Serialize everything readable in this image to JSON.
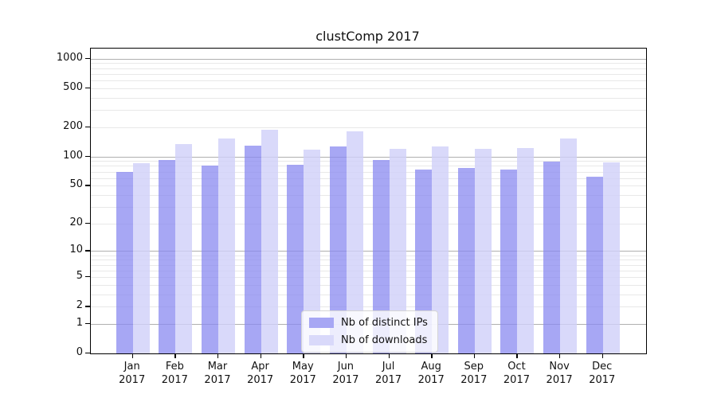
{
  "chart": {
    "title": "clustComp 2017"
  },
  "chart_data": {
    "type": "bar",
    "title": "clustComp 2017",
    "categories": [
      "Jan 2017",
      "Feb 2017",
      "Mar 2017",
      "Apr 2017",
      "May 2017",
      "Jun 2017",
      "Jul 2017",
      "Aug 2017",
      "Sep 2017",
      "Oct 2017",
      "Nov 2017",
      "Dec 2017"
    ],
    "series": [
      {
        "name": "Nb of distinct IPs",
        "color": "rgba(138,138,240,0.75)",
        "color_hex": "#a7a7f4",
        "values": [
          70,
          92,
          80,
          129,
          82,
          127,
          92,
          73,
          76,
          73,
          88,
          62
        ]
      },
      {
        "name": "Nb of downloads",
        "color": "rgba(208,208,249,0.8)",
        "color_hex": "#d9d9fa",
        "values": [
          85,
          135,
          152,
          190,
          117,
          182,
          119,
          127,
          121,
          122,
          152,
          87
        ]
      }
    ],
    "xlabel": "",
    "ylabel": "",
    "yscale": "log1p",
    "y_ticks": [
      0,
      1,
      2,
      5,
      10,
      20,
      50,
      100,
      200,
      500,
      1000
    ],
    "ylim": [
      0,
      1000
    ],
    "grid": true,
    "legend_position": "lower center"
  }
}
